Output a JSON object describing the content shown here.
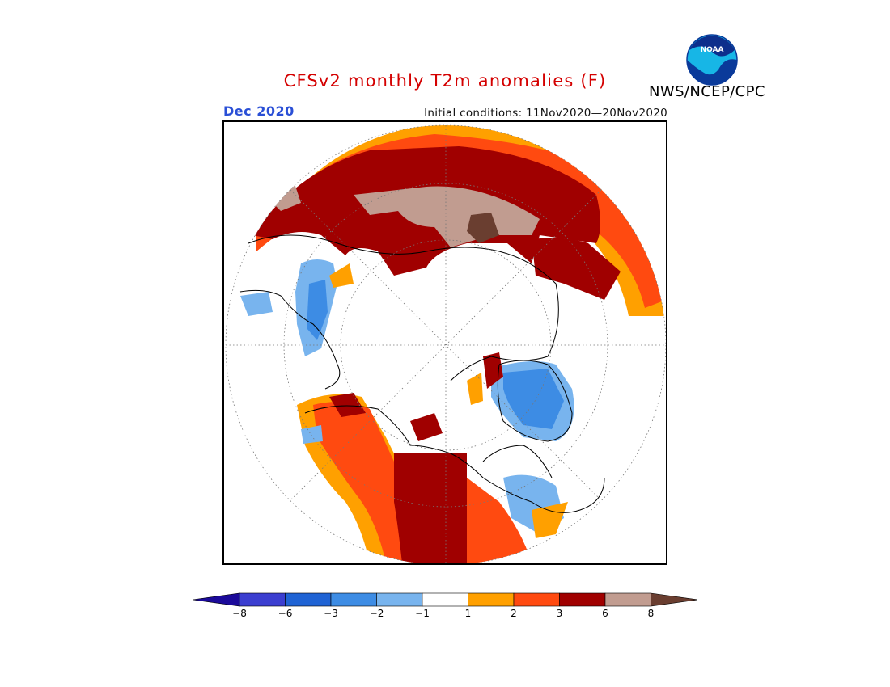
{
  "header": {
    "title": "CFSv2 monthly T2m anomalies (F)",
    "target_month": "Dec 2020",
    "initial_conditions": "Initial conditions: 11Nov2020—20Nov2020",
    "agency": "NWS/NCEP/CPC",
    "logo_text": "NOAA"
  },
  "legend": {
    "colors": [
      "#1b0a9a",
      "#3b3ed0",
      "#1f63d4",
      "#3d8ce4",
      "#78b4ee",
      "#ffffff",
      "#ffa000",
      "#ff4a10",
      "#a00000",
      "#c19c90",
      "#6a3e30"
    ],
    "tick_labels": [
      "−8",
      "−6",
      "−3",
      "−2",
      "−1",
      "1",
      "2",
      "3",
      "6",
      "8"
    ]
  },
  "map": {
    "projection": "north-polar-stereographic",
    "colors": {
      "brown_light": "#c19c90",
      "brown_dark": "#6a3e30",
      "dark_red": "#a00000",
      "red": "#ff4a10",
      "orange": "#ffa000",
      "light_blue": "#78b4ee",
      "blue": "#3d8ce4",
      "mid_blue": "#1f63d4"
    }
  }
}
